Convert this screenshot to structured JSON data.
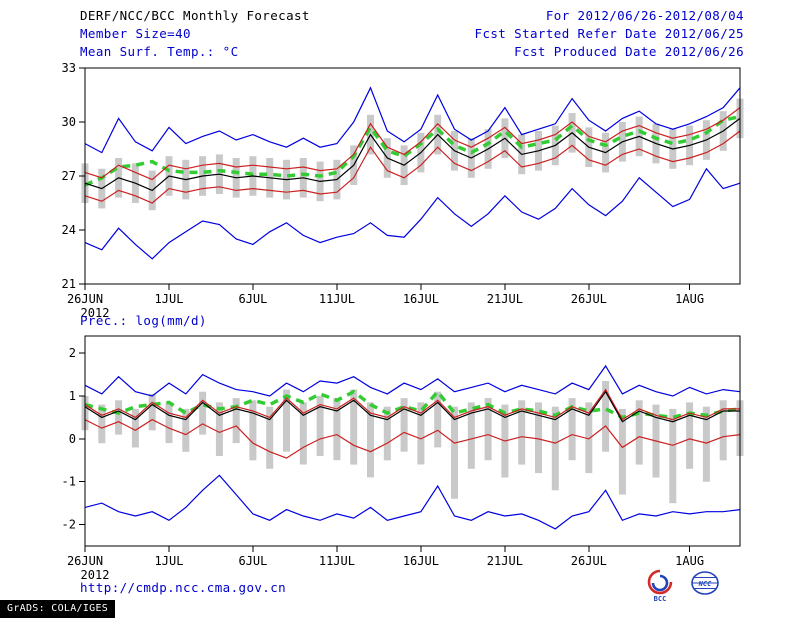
{
  "header": {
    "title": "DERF/NCC/BCC Monthly Forecast",
    "valid_range": "For 2012/06/26-2012/08/04",
    "member_size": "Member Size=40",
    "refer_date": "Fcst Started Refer Date 2012/06/25",
    "variable_label": "Mean Surf. Temp.: °C",
    "produced_date": "Fcst Produced Date 2012/06/26"
  },
  "second_panel_label": "Prec.: log(mm/d)",
  "footer": {
    "url": "http://cmdp.ncc.cma.gov.cn",
    "grads_credit": "GrADS: COLA/IGES",
    "bcc_logo_text": "BCC",
    "ncc_logo_text": "NCC"
  },
  "colors": {
    "text_blue": "#0000cc",
    "ensemble_envelope": "#0000e0",
    "ensemble_mean": "#000000",
    "std_band": "#cc2020",
    "climatology_dashed": "#33cc33",
    "member_spread_bars": "#c9c9c9"
  },
  "chart_data": [
    {
      "type": "line",
      "panel": "mean-surface-temperature",
      "title": "Mean Surf. Temp.: °C",
      "ylim": [
        21,
        33
      ],
      "yticks": [
        21,
        24,
        27,
        30,
        33
      ],
      "n_days": 40,
      "year": "2012",
      "xticks": [
        {
          "label": "26JUN",
          "day": 1
        },
        {
          "label": "1JUL",
          "day": 6
        },
        {
          "label": "6JUL",
          "day": 11
        },
        {
          "label": "11JUL",
          "day": 16
        },
        {
          "label": "16JUL",
          "day": 21
        },
        {
          "label": "21JUL",
          "day": 26
        },
        {
          "label": "26JUL",
          "day": 31
        },
        {
          "label": "1AUG",
          "day": 37
        }
      ],
      "series": {
        "ensemble_max": [
          28.8,
          28.3,
          30.2,
          28.9,
          28.4,
          29.7,
          28.8,
          29.2,
          29.5,
          29.0,
          29.3,
          28.9,
          28.6,
          29.1,
          28.6,
          28.8,
          30.0,
          31.9,
          29.5,
          28.9,
          29.6,
          31.5,
          29.6,
          29.0,
          29.5,
          30.8,
          29.3,
          29.6,
          29.9,
          31.3,
          30.1,
          29.5,
          30.2,
          30.6,
          29.9,
          29.6,
          29.9,
          30.3,
          30.8,
          31.9
        ],
        "ensemble_min": [
          23.3,
          22.9,
          24.1,
          23.2,
          22.4,
          23.3,
          23.9,
          24.5,
          24.3,
          23.5,
          23.2,
          23.9,
          24.4,
          23.7,
          23.3,
          23.6,
          23.8,
          24.4,
          23.7,
          23.6,
          24.6,
          25.8,
          24.9,
          24.2,
          24.9,
          25.9,
          25.0,
          24.6,
          25.2,
          26.3,
          25.4,
          24.8,
          25.6,
          26.9,
          26.1,
          25.3,
          25.7,
          27.4,
          26.3,
          26.6
        ],
        "ensemble_mean": [
          26.6,
          26.3,
          26.9,
          26.6,
          26.2,
          27.0,
          26.8,
          27.0,
          27.1,
          26.9,
          27.0,
          26.9,
          26.8,
          26.9,
          26.7,
          26.8,
          27.6,
          29.3,
          28.0,
          27.6,
          28.3,
          29.3,
          28.4,
          28.0,
          28.5,
          29.1,
          28.2,
          28.4,
          28.7,
          29.4,
          28.6,
          28.3,
          28.9,
          29.2,
          28.8,
          28.5,
          28.7,
          29.0,
          29.5,
          30.2
        ],
        "upper_band": [
          27.2,
          26.9,
          27.6,
          27.2,
          26.8,
          27.6,
          27.4,
          27.6,
          27.7,
          27.5,
          27.6,
          27.5,
          27.4,
          27.5,
          27.3,
          27.4,
          28.2,
          29.9,
          28.6,
          28.2,
          28.9,
          29.9,
          29.0,
          28.6,
          29.1,
          29.7,
          28.8,
          29.0,
          29.3,
          30.0,
          29.2,
          28.9,
          29.5,
          29.8,
          29.4,
          29.1,
          29.3,
          29.6,
          30.1,
          30.8
        ],
        "lower_band": [
          25.9,
          25.6,
          26.2,
          25.9,
          25.5,
          26.3,
          26.1,
          26.3,
          26.4,
          26.2,
          26.3,
          26.2,
          26.1,
          26.2,
          26.0,
          26.1,
          26.9,
          28.6,
          27.3,
          26.9,
          27.6,
          28.6,
          27.7,
          27.3,
          27.8,
          28.4,
          27.5,
          27.7,
          28.0,
          28.7,
          27.9,
          27.6,
          28.2,
          28.5,
          28.1,
          27.8,
          28.0,
          28.3,
          28.8,
          29.5
        ],
        "climatology": [
          26.5,
          26.9,
          27.5,
          27.6,
          27.8,
          27.3,
          27.2,
          27.2,
          27.3,
          27.2,
          27.1,
          27.1,
          27.0,
          27.1,
          27.0,
          27.2,
          28.1,
          29.7,
          28.4,
          28.1,
          28.8,
          29.6,
          28.7,
          28.3,
          28.8,
          29.5,
          28.6,
          28.8,
          29.0,
          29.8,
          29.0,
          28.7,
          29.2,
          29.5,
          29.1,
          28.8,
          29.0,
          29.4,
          30.1,
          30.3
        ]
      },
      "spread_bars": {
        "lo": [
          25.5,
          25.2,
          25.8,
          25.5,
          25.1,
          25.9,
          25.7,
          25.9,
          26.0,
          25.8,
          25.9,
          25.8,
          25.7,
          25.8,
          25.6,
          25.7,
          26.5,
          28.2,
          26.9,
          26.5,
          27.2,
          28.2,
          27.3,
          26.9,
          27.4,
          28.0,
          27.1,
          27.3,
          27.6,
          28.3,
          27.5,
          27.2,
          27.8,
          28.1,
          27.7,
          27.4,
          27.6,
          27.9,
          28.4,
          29.1
        ],
        "hi": [
          27.7,
          27.4,
          28.0,
          27.7,
          27.3,
          28.1,
          27.9,
          28.1,
          28.2,
          28.0,
          28.1,
          28.0,
          27.9,
          28.0,
          27.8,
          27.9,
          28.7,
          30.4,
          29.1,
          28.7,
          29.4,
          30.4,
          29.5,
          29.1,
          29.6,
          30.2,
          29.3,
          29.5,
          29.8,
          30.5,
          29.7,
          29.4,
          30.0,
          30.3,
          29.9,
          29.6,
          29.8,
          30.1,
          30.6,
          31.3
        ]
      }
    },
    {
      "type": "line",
      "panel": "precipitation-log",
      "title": "Prec.: log(mm/d)",
      "ylim": [
        -2.5,
        2.4
      ],
      "yticks": [
        -2,
        -1,
        0,
        1,
        2
      ],
      "n_days": 40,
      "year": "2012",
      "xticks": [
        {
          "label": "26JUN",
          "day": 1
        },
        {
          "label": "1JUL",
          "day": 6
        },
        {
          "label": "6JUL",
          "day": 11
        },
        {
          "label": "11JUL",
          "day": 16
        },
        {
          "label": "16JUL",
          "day": 21
        },
        {
          "label": "21JUL",
          "day": 26
        },
        {
          "label": "26JUL",
          "day": 31
        },
        {
          "label": "1AUG",
          "day": 37
        }
      ],
      "series": {
        "ensemble_max": [
          1.25,
          1.05,
          1.45,
          1.1,
          1.0,
          1.3,
          1.05,
          1.5,
          1.3,
          1.15,
          1.1,
          1.0,
          1.3,
          1.1,
          1.35,
          1.3,
          1.45,
          1.2,
          1.05,
          1.3,
          1.15,
          1.4,
          1.1,
          1.2,
          1.3,
          1.1,
          1.25,
          1.15,
          1.05,
          1.3,
          1.15,
          1.7,
          1.05,
          1.25,
          1.1,
          1.0,
          1.2,
          1.05,
          1.15,
          1.1
        ],
        "ensemble_min": [
          -1.6,
          -1.5,
          -1.7,
          -1.8,
          -1.7,
          -1.9,
          -1.6,
          -1.2,
          -0.85,
          -1.3,
          -1.75,
          -1.9,
          -1.65,
          -1.8,
          -1.9,
          -1.75,
          -1.85,
          -1.6,
          -1.9,
          -1.8,
          -1.7,
          -1.1,
          -1.8,
          -1.9,
          -1.7,
          -1.8,
          -1.75,
          -1.9,
          -2.1,
          -1.8,
          -1.7,
          -1.2,
          -1.9,
          -1.75,
          -1.8,
          -1.7,
          -1.75,
          -1.7,
          -1.7,
          -1.65
        ],
        "ensemble_mean": [
          0.75,
          0.5,
          0.65,
          0.45,
          0.8,
          0.55,
          0.45,
          0.85,
          0.55,
          0.7,
          0.6,
          0.45,
          0.9,
          0.55,
          0.75,
          0.65,
          0.9,
          0.55,
          0.45,
          0.7,
          0.55,
          0.85,
          0.45,
          0.6,
          0.7,
          0.5,
          0.65,
          0.55,
          0.45,
          0.7,
          0.55,
          1.1,
          0.4,
          0.65,
          0.5,
          0.4,
          0.55,
          0.45,
          0.65,
          0.65
        ],
        "upper_band": [
          0.8,
          0.55,
          0.7,
          0.5,
          0.85,
          0.6,
          0.5,
          0.9,
          0.6,
          0.75,
          0.65,
          0.5,
          0.95,
          0.6,
          0.8,
          0.7,
          0.95,
          0.6,
          0.5,
          0.75,
          0.6,
          0.9,
          0.5,
          0.65,
          0.75,
          0.55,
          0.7,
          0.6,
          0.5,
          0.75,
          0.6,
          1.15,
          0.45,
          0.7,
          0.55,
          0.45,
          0.6,
          0.5,
          0.7,
          0.7
        ],
        "lower_band": [
          0.45,
          0.25,
          0.4,
          0.2,
          0.45,
          0.25,
          0.1,
          0.35,
          0.15,
          0.3,
          -0.1,
          -0.3,
          -0.45,
          -0.2,
          0.0,
          0.1,
          -0.15,
          -0.3,
          -0.1,
          0.15,
          0.0,
          0.2,
          -0.1,
          0.0,
          0.1,
          -0.05,
          0.05,
          0.0,
          -0.1,
          0.1,
          0.0,
          0.3,
          -0.2,
          0.05,
          -0.05,
          -0.15,
          0.0,
          -0.1,
          0.05,
          0.1
        ],
        "climatology": [
          0.8,
          0.7,
          0.6,
          0.75,
          0.8,
          0.85,
          0.6,
          0.8,
          0.7,
          0.75,
          0.9,
          0.8,
          1.0,
          0.85,
          1.05,
          0.9,
          1.1,
          0.8,
          0.6,
          0.75,
          0.65,
          1.1,
          0.6,
          0.7,
          0.8,
          0.6,
          0.7,
          0.65,
          0.55,
          0.75,
          0.65,
          0.7,
          0.5,
          0.6,
          0.55,
          0.5,
          0.6,
          0.55,
          0.65,
          0.7
        ]
      },
      "spread_bars": {
        "lo": [
          0.2,
          -0.1,
          0.1,
          -0.2,
          0.2,
          -0.1,
          -0.3,
          0.1,
          -0.4,
          -0.1,
          -0.5,
          -0.7,
          -0.3,
          -0.6,
          -0.4,
          -0.5,
          -0.6,
          -0.9,
          -0.5,
          -0.3,
          -0.6,
          -0.2,
          -1.4,
          -0.7,
          -0.5,
          -0.9,
          -0.6,
          -0.8,
          -1.2,
          -0.5,
          -0.8,
          -0.3,
          -1.3,
          -0.6,
          -0.9,
          -1.5,
          -0.7,
          -1.0,
          -0.5,
          -0.4
        ],
        "hi": [
          1.0,
          0.8,
          0.9,
          0.7,
          1.05,
          0.85,
          0.7,
          1.1,
          0.85,
          0.95,
          0.9,
          0.75,
          1.15,
          0.85,
          1.0,
          0.95,
          1.15,
          0.85,
          0.75,
          0.95,
          0.85,
          1.1,
          0.75,
          0.85,
          0.95,
          0.8,
          0.9,
          0.85,
          0.75,
          0.95,
          0.85,
          1.35,
          0.7,
          0.9,
          0.8,
          0.7,
          0.85,
          0.75,
          0.9,
          0.9
        ]
      }
    }
  ]
}
